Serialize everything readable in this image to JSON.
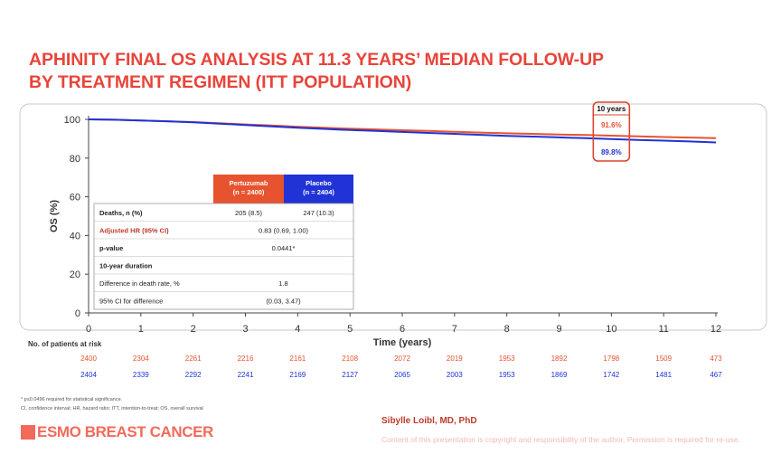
{
  "slide": {
    "title_line1": "APHINITY FINAL OS ANALYSIS AT 11.3 YEARS’ MEDIAN FOLLOW-UP",
    "title_line2": "BY TREATMENT REGIMEN (ITT POPULATION)",
    "footnote1": "* p≤0.0496 required for statistical significance.",
    "footnote2": "CI, confidence interval; HR, hazard ratio; ITT, intention-to-treat; OS, overall survival",
    "logo_text": "ESMO BREAST CANCER",
    "author": "Sibylle Loibl, MD, PhD",
    "copyright": "Content of this presentation is copyright and responsibility of the author. Permission is required for re-use."
  },
  "colors": {
    "title": "#e8443a",
    "pertuzumab": "#e8532f",
    "placebo": "#1f33d6",
    "hr_label": "#c0392b"
  },
  "chart_data": {
    "type": "line",
    "xlabel": "Time (years)",
    "ylabel": "OS (%)",
    "xlim": [
      0,
      12
    ],
    "ylim": [
      0,
      100
    ],
    "xticks": [
      0,
      1,
      2,
      3,
      4,
      5,
      6,
      7,
      8,
      9,
      10,
      11,
      12
    ],
    "yticks": [
      0,
      20,
      40,
      60,
      80,
      100
    ],
    "series": [
      {
        "key": "pertuzumab",
        "x": [
          0,
          0.5,
          1,
          1.5,
          2,
          2.5,
          3,
          3.5,
          4,
          4.5,
          5,
          5.5,
          6,
          6.5,
          7,
          7.5,
          8,
          8.5,
          9,
          9.5,
          10,
          10.5,
          11,
          11.5,
          12
        ],
        "y": [
          100,
          99.8,
          99.4,
          99,
          98.6,
          98,
          97.4,
          96.8,
          96.2,
          95.7,
          95.2,
          94.8,
          94.4,
          94,
          93.6,
          93.2,
          92.8,
          92.5,
          92.2,
          91.9,
          91.6,
          91.2,
          90.9,
          90.6,
          90.3
        ]
      },
      {
        "key": "placebo",
        "x": [
          0,
          0.5,
          1,
          1.5,
          2,
          2.5,
          3,
          3.5,
          4,
          4.5,
          5,
          5.5,
          6,
          6.5,
          7,
          7.5,
          8,
          8.5,
          9,
          9.5,
          10,
          10.5,
          11,
          11.5,
          12
        ],
        "y": [
          100,
          99.8,
          99.4,
          99,
          98.5,
          97.8,
          97.1,
          96.4,
          95.7,
          95.1,
          94.5,
          94,
          93.5,
          93,
          92.5,
          92,
          91.5,
          91.1,
          90.7,
          90.3,
          89.8,
          89.4,
          89,
          88.6,
          88.1
        ]
      }
    ],
    "annotation": {
      "header": "10 years",
      "pertuzumab_value": "91.6%",
      "placebo_value": "89.8%",
      "x": 10
    },
    "table": {
      "col1": "Pertuzumab\n(n = 2400)",
      "col2": "Placebo\n(n = 2404)",
      "rows": [
        {
          "label": "Deaths, n (%)",
          "v1": "205 (8.5)",
          "v2": "247 (10.3)"
        },
        {
          "label": "Adjusted HR (95% CI)",
          "merged": "0.83 (0.69, 1.00)"
        },
        {
          "label": "p-value",
          "merged": "0.0441*"
        },
        {
          "label": "10-year duration",
          "merged": ""
        },
        {
          "label": "Difference in death rate, %",
          "merged": "1.8"
        },
        {
          "label": "95% CI for difference",
          "merged": "(0.03, 3.47)"
        }
      ]
    },
    "at_risk": {
      "label": "No. of patients at risk",
      "pertuzumab": [
        2400,
        2304,
        2261,
        2216,
        2161,
        2108,
        2072,
        2019,
        1953,
        1892,
        1798,
        1509,
        473
      ],
      "placebo": [
        2404,
        2339,
        2292,
        2241,
        2169,
        2127,
        2065,
        2003,
        1953,
        1869,
        1742,
        1481,
        467
      ]
    }
  }
}
